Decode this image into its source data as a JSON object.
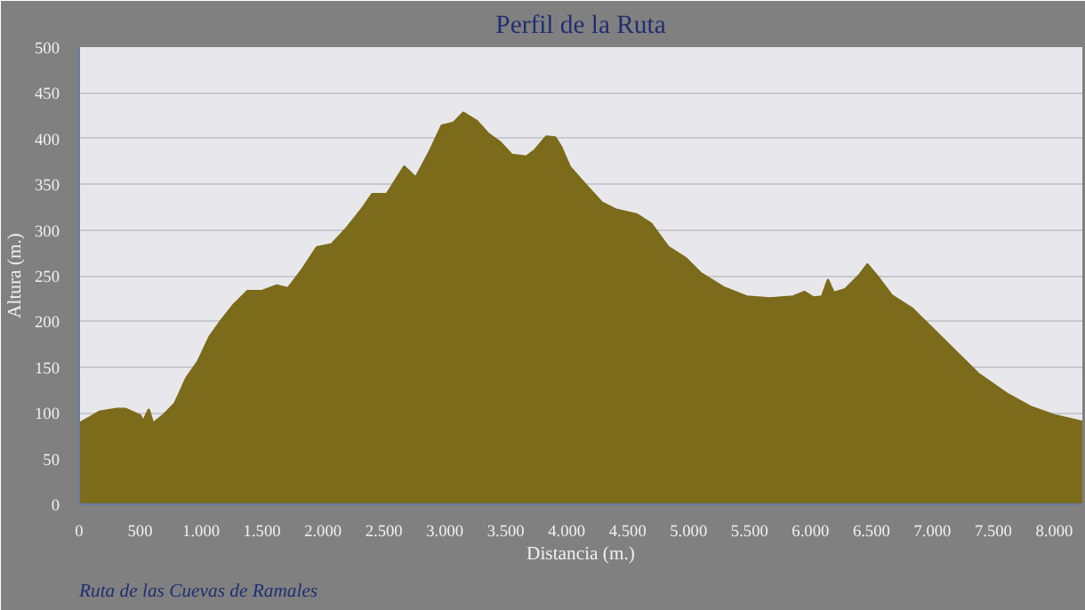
{
  "chart_data": {
    "type": "area",
    "title": "Perfil de la Ruta",
    "xlabel": "Distancia (m.)",
    "ylabel": "Altura (m.)",
    "annotations": [
      "Ruta de las Cuevas de Ramales"
    ],
    "xlim": [
      0,
      8230
    ],
    "ylim": [
      0,
      500
    ],
    "xticks": [
      0,
      500,
      {
        "value": 1000,
        "label": "1.000"
      },
      {
        "value": 1500,
        "label": "1.500"
      },
      {
        "value": 2000,
        "label": "2.000"
      },
      {
        "value": 2500,
        "label": "2.500"
      },
      {
        "value": 3000,
        "label": "3.000"
      },
      {
        "value": 3500,
        "label": "3.500"
      },
      {
        "value": 4000,
        "label": "4.000"
      },
      {
        "value": 4500,
        "label": "4.500"
      },
      {
        "value": 5000,
        "label": "5.000"
      },
      {
        "value": 5500,
        "label": "5.500"
      },
      {
        "value": 6000,
        "label": "6.000"
      },
      {
        "value": 6500,
        "label": "6.500"
      },
      {
        "value": 7000,
        "label": "7.000"
      },
      {
        "value": 7500,
        "label": "7.500"
      },
      {
        "value": 8000,
        "label": "8.000"
      }
    ],
    "yticks": [
      0,
      50,
      100,
      150,
      200,
      250,
      300,
      350,
      400,
      450,
      500
    ],
    "grid": "y",
    "x": [
      0,
      167,
      310,
      381,
      500,
      524,
      571,
      605,
      690,
      786,
      881,
      976,
      1071,
      1167,
      1262,
      1381,
      1500,
      1619,
      1714,
      1833,
      1952,
      2071,
      2190,
      2310,
      2405,
      2524,
      2667,
      2762,
      2881,
      2976,
      3071,
      3152,
      3262,
      3357,
      3452,
      3548,
      3667,
      3738,
      3833,
      3905,
      3952,
      4024,
      4143,
      4286,
      4405,
      4571,
      4690,
      4833,
      4976,
      5095,
      5286,
      5476,
      5667,
      5857,
      5952,
      6024,
      6095,
      6143,
      6190,
      6286,
      6405,
      6467,
      6548,
      6667,
      6833,
      7000,
      7190,
      7381,
      7619,
      7810,
      8000,
      8230
    ],
    "series": [
      {
        "color": "#7b6b1a",
        "values": [
          88,
          101,
          104,
          104,
          97,
          90,
          103,
          88,
          97,
          110,
          138,
          156,
          183,
          201,
          217,
          233,
          233,
          239,
          236,
          257,
          281,
          284,
          301,
          321,
          339,
          339,
          369,
          357,
          387,
          414,
          417,
          428,
          419,
          405,
          396,
          382,
          380,
          387,
          402,
          401,
          391,
          369,
          351,
          330,
          322,
          317,
          307,
          281,
          269,
          253,
          237,
          227,
          225,
          227,
          232,
          226,
          227,
          245,
          231,
          235,
          251,
          262,
          249,
          228,
          214,
          192,
          167,
          142,
          120,
          106,
          97,
          90
        ]
      }
    ]
  }
}
